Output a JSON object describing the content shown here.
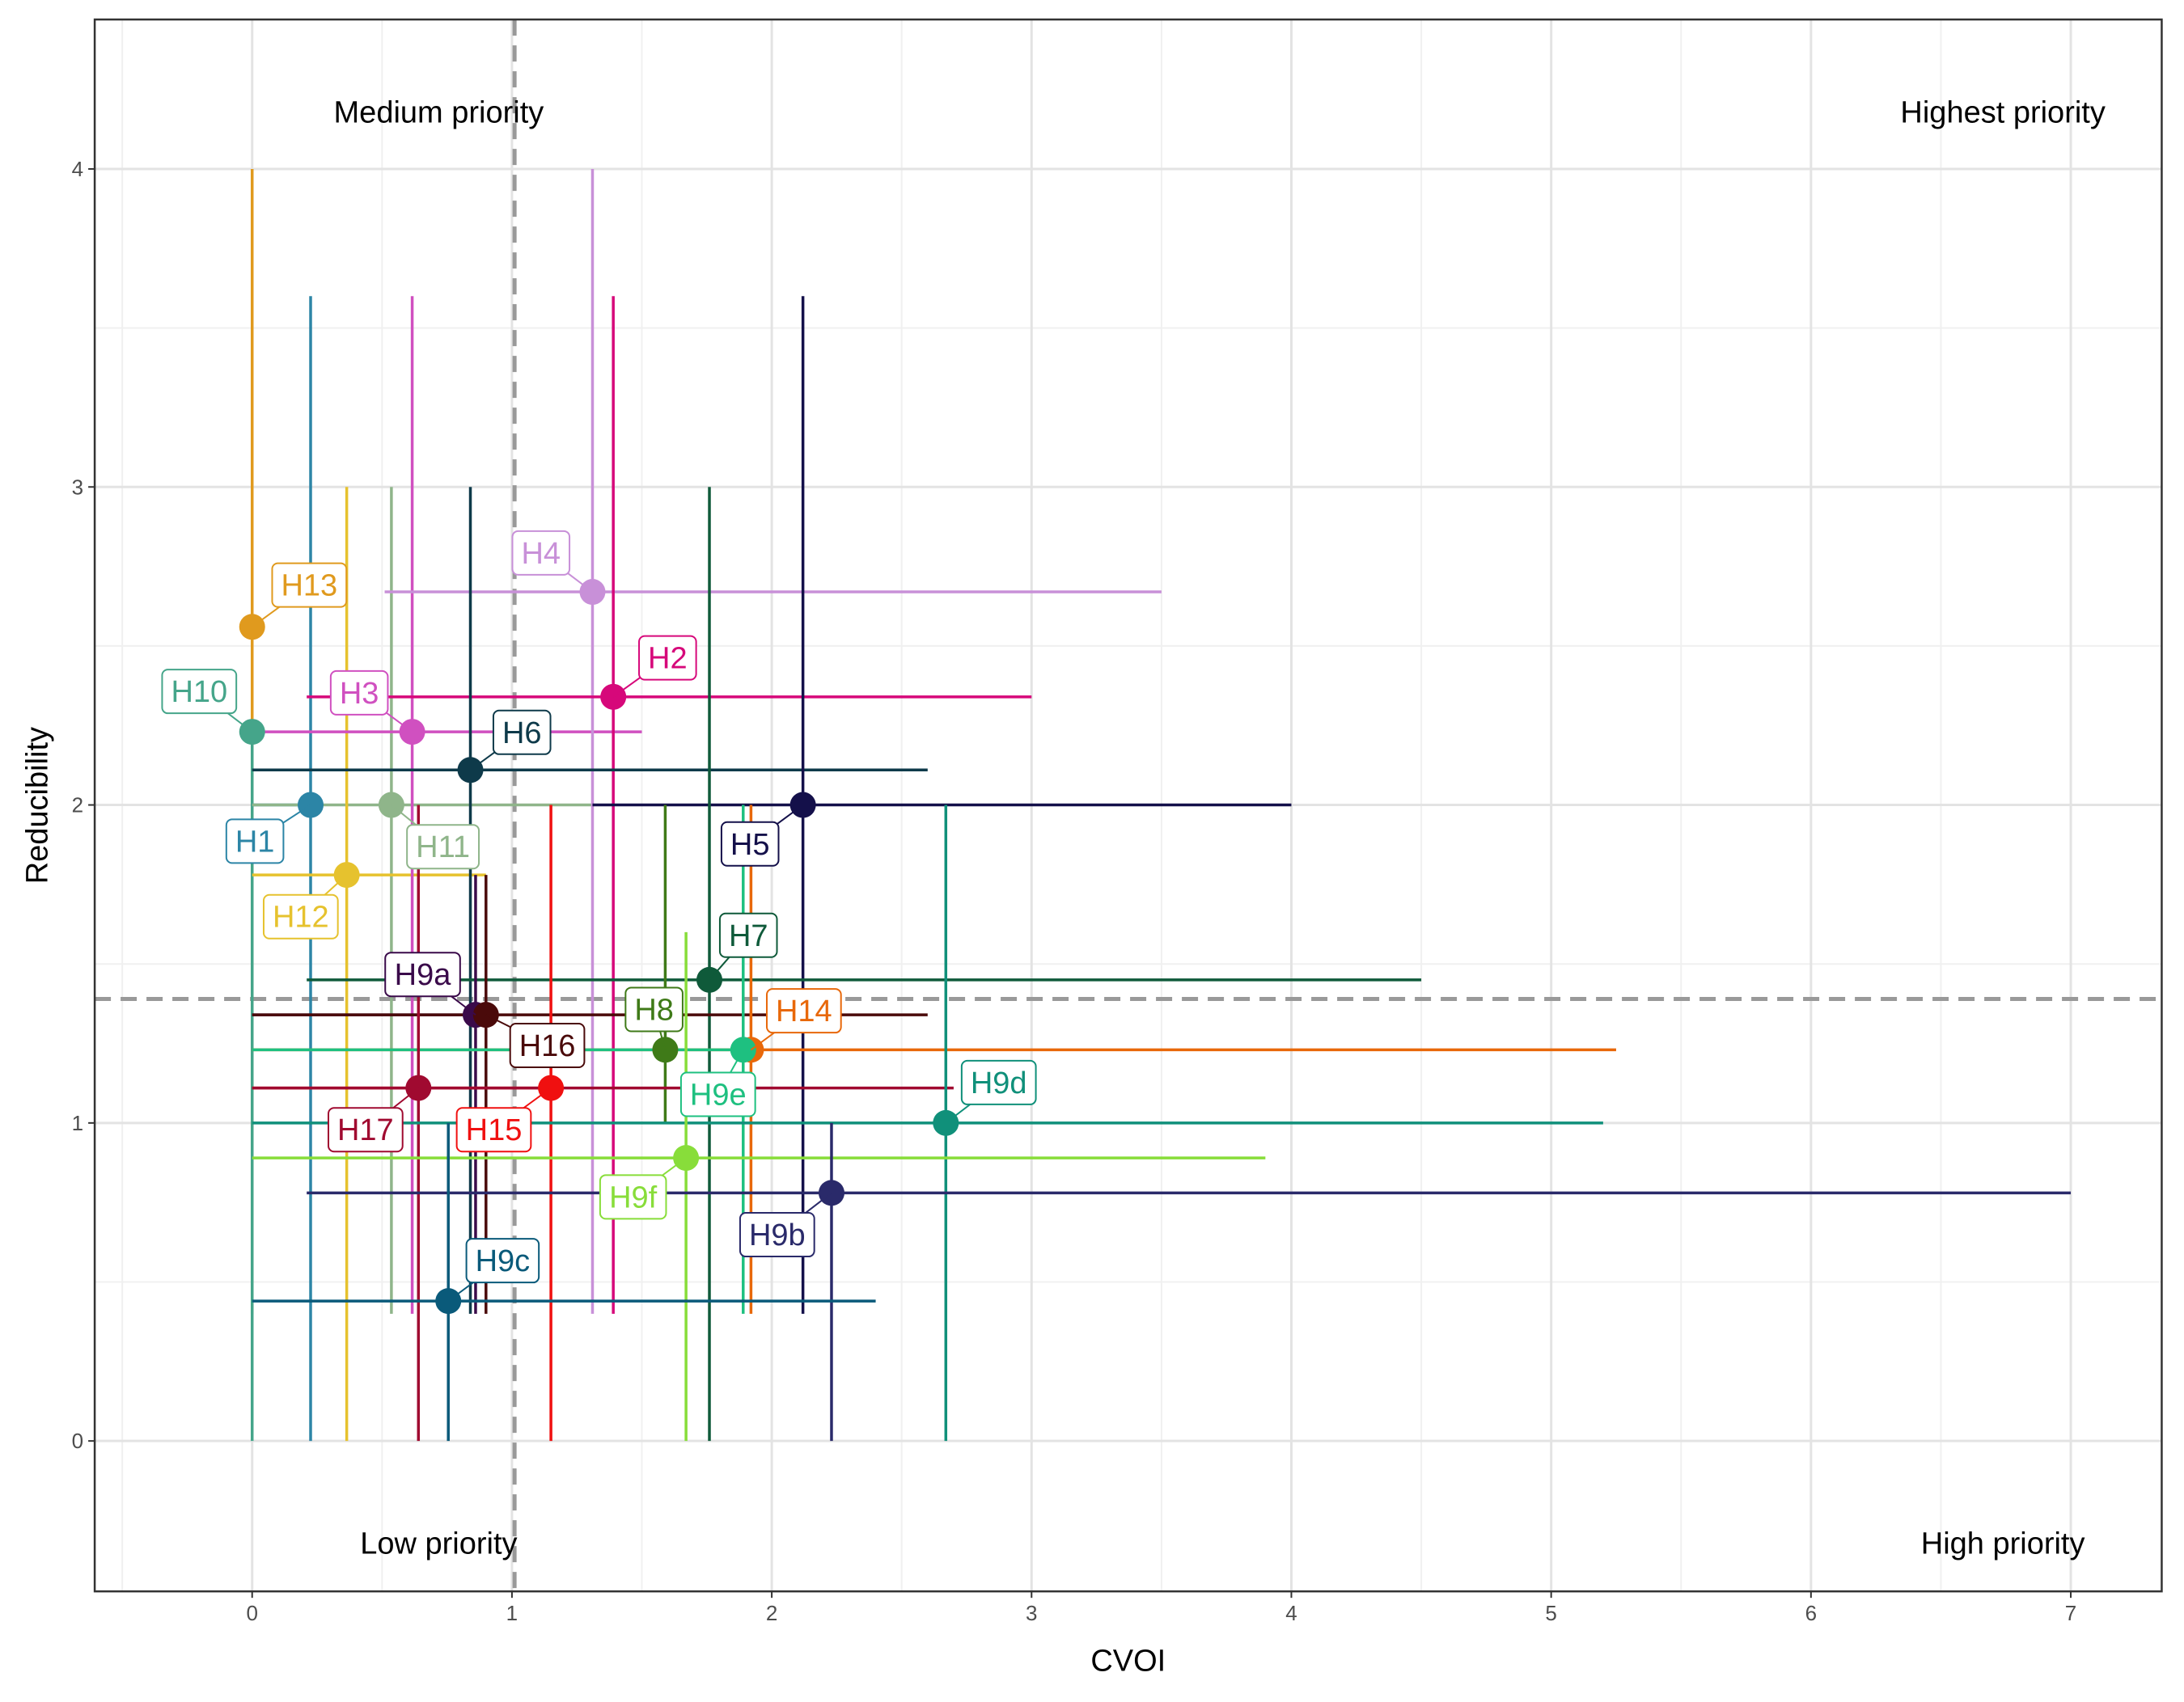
{
  "chart_data": {
    "type": "scatter",
    "x_label": "CVOI",
    "y_label": "Reducibility",
    "xlim": [
      -0.606,
      7.35
    ],
    "ylim": [
      -0.473,
      4.47
    ],
    "xticks": [
      0,
      1,
      2,
      3,
      4,
      5,
      6,
      7
    ],
    "yticks": [
      0,
      1,
      2,
      3,
      4
    ],
    "grid": true,
    "vline": 1.01,
    "hline": 1.39,
    "annotations": [
      "Medium priority",
      "Highest priority",
      "Low priority",
      "High priority"
    ],
    "series": [
      {
        "name": "H13",
        "color": "#e09a1e",
        "x": 0,
        "y": 2.56,
        "xmin": 0,
        "xmax": 0,
        "ymin": 0.4,
        "ymax": 4.0
      },
      {
        "name": "H10",
        "color": "#45a58a",
        "x": 0,
        "y": 2.23,
        "xmin": 0,
        "xmax": 0,
        "ymin": 0,
        "ymax": 2.23
      },
      {
        "name": "H1",
        "color": "#2c85a6",
        "x": 0.225,
        "y": 2.0,
        "xmin": 0,
        "xmax": 0.225,
        "ymin": 0,
        "ymax": 3.6
      },
      {
        "name": "H11",
        "color": "#8fb58a",
        "x": 0.536,
        "y": 2.0,
        "xmin": 0,
        "xmax": 1.31,
        "ymin": 0.4,
        "ymax": 3.0
      },
      {
        "name": "H12",
        "color": "#e6c22e",
        "x": 0.364,
        "y": 1.78,
        "xmin": 0,
        "xmax": 0.9,
        "ymin": 0,
        "ymax": 3.0
      },
      {
        "name": "H3",
        "color": "#d050c0",
        "x": 0.616,
        "y": 2.23,
        "xmin": 0,
        "xmax": 1.5,
        "ymin": 0.4,
        "ymax": 3.6
      },
      {
        "name": "H4",
        "color": "#c890d8",
        "x": 1.31,
        "y": 2.67,
        "xmin": 0.51,
        "xmax": 3.5,
        "ymin": 0.4,
        "ymax": 4.0
      },
      {
        "name": "H2",
        "color": "#d6087a",
        "x": 1.39,
        "y": 2.34,
        "xmin": 0.21,
        "xmax": 3.0,
        "ymin": 0.4,
        "ymax": 3.6
      },
      {
        "name": "H6",
        "color": "#0e3a4a",
        "x": 0.84,
        "y": 2.11,
        "xmin": 0,
        "xmax": 2.6,
        "ymin": 0.4,
        "ymax": 3.0
      },
      {
        "name": "H5",
        "color": "#14104a",
        "x": 2.12,
        "y": 2.0,
        "xmin": 1.31,
        "xmax": 4.0,
        "ymin": 0.4,
        "ymax": 3.6
      },
      {
        "name": "H7",
        "color": "#0f5a3a",
        "x": 1.76,
        "y": 1.45,
        "xmin": 0.21,
        "xmax": 4.5,
        "ymin": 0,
        "ymax": 3.0
      },
      {
        "name": "H9a",
        "color": "#3a0a4a",
        "x": 0.86,
        "y": 1.34,
        "xmin": 0,
        "xmax": 0.9,
        "ymin": 0.4,
        "ymax": 1.78
      },
      {
        "name": "H16",
        "color": "#4a0a0a",
        "x": 0.9,
        "y": 1.34,
        "xmin": 0,
        "xmax": 2.6,
        "ymin": 0.4,
        "ymax": 1.78
      },
      {
        "name": "H8",
        "color": "#3f7a18",
        "x": 1.59,
        "y": 1.23,
        "xmin": 1.59,
        "xmax": 1.59,
        "ymin": 1.0,
        "ymax": 2.0
      },
      {
        "name": "H14",
        "color": "#e8680a",
        "x": 1.92,
        "y": 1.23,
        "xmin": 0,
        "xmax": 5.25,
        "ymin": 0.4,
        "ymax": 2.0
      },
      {
        "name": "H9e",
        "color": "#1ec080",
        "x": 1.89,
        "y": 1.23,
        "xmin": 0,
        "xmax": 1.89,
        "ymin": 0.4,
        "ymax": 2.0
      },
      {
        "name": "H15",
        "color": "#f01010",
        "x": 1.15,
        "y": 1.11,
        "xmin": 0,
        "xmax": 1.15,
        "ymin": 0,
        "ymax": 2.0
      },
      {
        "name": "H17",
        "color": "#a00a30",
        "x": 0.64,
        "y": 1.11,
        "xmin": 0,
        "xmax": 2.7,
        "ymin": 0,
        "ymax": 2.0
      },
      {
        "name": "H9d",
        "color": "#10907a",
        "x": 2.67,
        "y": 1.0,
        "xmin": 0,
        "xmax": 5.2,
        "ymin": 0,
        "ymax": 2.0
      },
      {
        "name": "H9f",
        "color": "#88dd3a",
        "x": 1.67,
        "y": 0.89,
        "xmin": 0,
        "xmax": 3.9,
        "ymin": 0,
        "ymax": 1.6
      },
      {
        "name": "H9b",
        "color": "#2a2a6a",
        "x": 2.23,
        "y": 0.78,
        "xmin": 0.21,
        "xmax": 7.0,
        "ymin": 0,
        "ymax": 1.0
      },
      {
        "name": "H9c",
        "color": "#0a5a7a",
        "x": 0.755,
        "y": 0.44,
        "xmin": 0,
        "xmax": 2.4,
        "ymin": 0,
        "ymax": 1.0
      }
    ]
  }
}
